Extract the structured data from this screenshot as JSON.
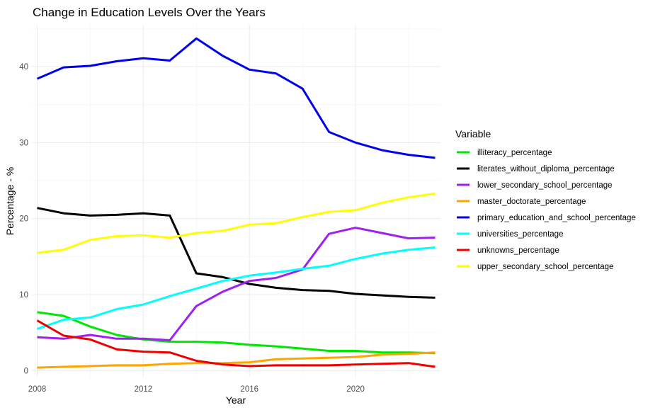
{
  "chart_data": {
    "type": "line",
    "title": "Change in Education Levels Over the Years",
    "xlabel": "Year",
    "ylabel": "Percentage - %",
    "xlim": [
      2007.8,
      2023.2
    ],
    "ylim": [
      -0.8,
      45.5
    ],
    "x_ticks": [
      2008,
      2012,
      2016,
      2020
    ],
    "y_ticks": [
      0,
      10,
      20,
      30,
      40
    ],
    "grid": true,
    "legend": {
      "title": "Variable",
      "position": "right"
    },
    "x": [
      2008,
      2009,
      2010,
      2011,
      2012,
      2013,
      2014,
      2015,
      2016,
      2017,
      2018,
      2019,
      2020,
      2021,
      2022,
      2023
    ],
    "series": [
      {
        "name": "illiteracy_percentage",
        "color": "#00e600",
        "values": [
          7.7,
          7.2,
          5.8,
          4.7,
          4.1,
          3.8,
          3.8,
          3.7,
          3.4,
          3.2,
          2.9,
          2.6,
          2.6,
          2.4,
          2.4,
          2.3
        ]
      },
      {
        "name": "literates_without_diploma_percentage",
        "color": "#000000",
        "values": [
          21.4,
          20.7,
          20.4,
          20.5,
          20.7,
          20.4,
          12.8,
          12.3,
          11.4,
          10.9,
          10.6,
          10.5,
          10.1,
          9.9,
          9.7,
          9.6
        ]
      },
      {
        "name": "lower_secondary_school_percentage",
        "color": "#a020f0",
        "values": [
          4.4,
          4.2,
          4.7,
          4.2,
          4.2,
          4.0,
          8.5,
          10.4,
          11.8,
          12.2,
          13.3,
          18.0,
          18.8,
          18.1,
          17.4,
          17.5
        ]
      },
      {
        "name": "master_doctorate_percentage",
        "color": "#ffa500",
        "values": [
          0.4,
          0.5,
          0.6,
          0.7,
          0.7,
          0.9,
          1.0,
          1.0,
          1.1,
          1.5,
          1.6,
          1.7,
          1.8,
          2.1,
          2.2,
          2.4
        ]
      },
      {
        "name": "primary_education_and_school_percentage",
        "color": "#0000ee",
        "values": [
          38.4,
          39.9,
          40.1,
          40.7,
          41.1,
          40.8,
          43.7,
          41.4,
          39.6,
          39.1,
          37.1,
          31.4,
          30.0,
          29.0,
          28.4,
          28.0
        ]
      },
      {
        "name": "universities_percentage",
        "color": "#00ffff",
        "values": [
          5.5,
          6.7,
          7.0,
          8.1,
          8.7,
          9.8,
          10.8,
          11.8,
          12.5,
          12.9,
          13.4,
          13.8,
          14.7,
          15.4,
          15.9,
          16.2
        ]
      },
      {
        "name": "unknowns_percentage",
        "color": "#ee0000",
        "values": [
          6.6,
          4.6,
          4.1,
          2.8,
          2.5,
          2.4,
          1.3,
          0.8,
          0.6,
          0.7,
          0.7,
          0.7,
          0.8,
          0.9,
          1.0,
          0.5
        ]
      },
      {
        "name": "upper_secondary_school_percentage",
        "color": "#ffff00",
        "values": [
          15.5,
          15.9,
          17.2,
          17.7,
          17.8,
          17.5,
          18.1,
          18.4,
          19.2,
          19.4,
          20.2,
          20.9,
          21.1,
          22.1,
          22.8,
          23.3
        ]
      }
    ]
  }
}
